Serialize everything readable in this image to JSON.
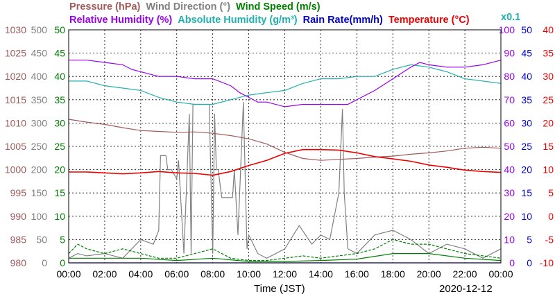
{
  "chart_data": {
    "type": "line",
    "date": "2020-12-12",
    "xlabel": "Time (JST)",
    "x_ticks": [
      "00:00",
      "02:00",
      "04:00",
      "06:00",
      "08:00",
      "10:00",
      "12:00",
      "14:00",
      "16:00",
      "18:00",
      "20:00",
      "22:00",
      "00:00"
    ],
    "x_range_hours": [
      0,
      24
    ],
    "grid": true,
    "legend_rows": [
      [
        {
          "key": "pressure",
          "text": "Pressure (hPa)"
        },
        {
          "key": "wind_dir",
          "text": "Wind Direction (°)"
        },
        {
          "key": "wind_speed",
          "text": "Wind Speed (m/s)"
        }
      ],
      [
        {
          "key": "rh",
          "text": "Relative Humidity (%)"
        },
        {
          "key": "ah",
          "text": "Absolute Humidity (g/m³)"
        },
        {
          "key": "rain",
          "text": "Rain Rate(mm/h)"
        },
        {
          "key": "temp",
          "text": "Temperature (°C)"
        }
      ]
    ],
    "scale_note": "x0.1",
    "axes": [
      {
        "key": "pressure",
        "side": "left",
        "range": [
          980,
          1030
        ],
        "ticks": [
          "1030",
          "1025",
          "1020",
          "1015",
          "1010",
          "1005",
          "1000",
          "995",
          "990",
          "985",
          "980"
        ]
      },
      {
        "key": "wind_dir",
        "side": "left",
        "range": [
          0,
          500
        ],
        "ticks": [
          "500",
          "450",
          "400",
          "350",
          "300",
          "250",
          "200",
          "150",
          "100",
          "50",
          "0"
        ]
      },
      {
        "key": "wind_speed",
        "side": "left",
        "range": [
          0,
          50
        ],
        "ticks": [
          "50",
          "45",
          "40",
          "35",
          "30",
          "25",
          "20",
          "15",
          "10",
          "5",
          "0"
        ]
      },
      {
        "key": "rh",
        "side": "right",
        "range": [
          0,
          100
        ],
        "ticks": [
          "100",
          "90",
          "80",
          "70",
          "60",
          "50",
          "40",
          "30",
          "20",
          "10",
          "0"
        ]
      },
      {
        "key": "rain",
        "side": "right",
        "range": [
          0,
          50
        ],
        "ticks": [
          "50",
          "45",
          "40",
          "35",
          "30",
          "25",
          "20",
          "15",
          "10",
          "5",
          "0"
        ]
      },
      {
        "key": "temp",
        "side": "right",
        "range": [
          -10,
          40
        ],
        "ticks": [
          "40",
          "35",
          "30",
          "25",
          "20",
          "15",
          "10",
          "5",
          "0",
          "-5",
          "-10"
        ]
      }
    ],
    "colors": {
      "pressure": "#a05a5a",
      "wind_dir": "#808080",
      "wind_speed": "#008000",
      "rh": "#9900ee",
      "ah": "#20b0b0",
      "rain": "#0000cc",
      "temp": "#ee0000",
      "grid": "#000000"
    },
    "series": [
      {
        "key": "pressure",
        "axis": "pressure",
        "x": [
          0,
          1,
          2,
          3,
          4,
          5,
          6,
          7,
          8,
          9,
          10,
          11,
          12,
          13,
          14,
          15,
          16,
          17,
          18,
          19,
          20,
          21,
          22,
          23,
          24
        ],
        "y": [
          1010.8,
          1010.2,
          1009.7,
          1009.0,
          1008.4,
          1008.2,
          1008.0,
          1008.1,
          1007.8,
          1007.3,
          1006.6,
          1005.5,
          1003.7,
          1002.4,
          1002.0,
          1002.2,
          1002.4,
          1002.7,
          1002.9,
          1003.3,
          1003.6,
          1004.0,
          1004.6,
          1004.8,
          1004.6
        ]
      },
      {
        "key": "rh",
        "axis": "rh",
        "x": [
          0,
          1,
          2,
          3,
          3.5,
          5,
          6,
          7,
          8,
          9,
          9.5,
          10,
          10.5,
          11,
          12,
          13,
          14,
          15,
          15.5,
          16,
          17,
          18,
          19,
          19.5,
          20,
          21,
          22,
          23,
          24
        ],
        "y": [
          87,
          87,
          86,
          85,
          83,
          80,
          80,
          79,
          79,
          76,
          73,
          71,
          69,
          69,
          67,
          68,
          68,
          68,
          68,
          70,
          74,
          79,
          84,
          86,
          85,
          84,
          84,
          85,
          87
        ]
      },
      {
        "key": "ah",
        "axis": "rh",
        "x": [
          0,
          1,
          2,
          3,
          4,
          5,
          6,
          7,
          8,
          9,
          10,
          11,
          12,
          13,
          14,
          15,
          16,
          17,
          18,
          19,
          20,
          21,
          22,
          23,
          24
        ],
        "y": [
          78,
          78,
          76,
          75,
          74,
          71,
          69,
          68,
          68,
          70,
          72,
          73,
          74,
          77,
          79,
          79,
          80,
          80,
          83,
          85,
          84,
          82,
          79,
          78,
          77
        ]
      },
      {
        "key": "temp",
        "axis": "temp",
        "x": [
          0,
          1,
          2,
          3,
          4,
          5,
          6,
          7,
          8,
          9,
          10,
          11,
          12,
          13,
          14,
          15,
          16,
          17,
          18,
          19,
          20,
          21,
          22,
          23,
          24
        ],
        "y": [
          9.5,
          9.5,
          9.3,
          9.1,
          9.3,
          9.6,
          9.3,
          9.2,
          8.8,
          9.6,
          10.9,
          12.0,
          13.5,
          14.3,
          14.3,
          14.2,
          13.6,
          12.8,
          12.3,
          11.8,
          11.0,
          10.5,
          9.9,
          9.6,
          9.4
        ]
      },
      {
        "key": "wind_dir",
        "axis": "wind_dir",
        "x": [
          0,
          0.5,
          1,
          2,
          3,
          4,
          4.7,
          5.0,
          5.1,
          5.4,
          5.5,
          5.7,
          6.0,
          6.1,
          6.4,
          6.7,
          6.8,
          6.9,
          7.1,
          7.2,
          7.4,
          7.8,
          8.0,
          8.1,
          8.2,
          8.3,
          8.5,
          9.1,
          9.2,
          9.4,
          9.7,
          9.9,
          10.0,
          10.5,
          11,
          12,
          12.8,
          13.5,
          14,
          14.5,
          15.0,
          15.2,
          15.3,
          15.5,
          16,
          17,
          18,
          19,
          20,
          21,
          22,
          23,
          24
        ],
        "y": [
          10,
          20,
          15,
          20,
          10,
          50,
          40,
          70,
          230,
          230,
          200,
          200,
          180,
          220,
          20,
          320,
          20,
          340,
          340,
          340,
          340,
          340,
          20,
          320,
          200,
          200,
          140,
          140,
          200,
          60,
          345,
          30,
          60,
          20,
          10,
          30,
          80,
          40,
          60,
          50,
          150,
          330,
          150,
          30,
          20,
          60,
          70,
          50,
          20,
          40,
          30,
          10,
          30
        ]
      },
      {
        "key": "wind_speed",
        "axis": "wind_speed",
        "style": "dashed",
        "x": [
          0,
          0.5,
          1,
          2,
          3,
          4,
          5,
          6,
          7,
          8,
          9,
          10,
          11,
          12,
          13,
          14,
          15,
          16,
          17,
          18,
          19,
          20,
          21,
          22,
          23,
          24
        ],
        "y": [
          2,
          4,
          3,
          2,
          3,
          2,
          1,
          1,
          2,
          3,
          1,
          0.5,
          0.5,
          1,
          1.5,
          1,
          1.5,
          2,
          3,
          5,
          4,
          4,
          3,
          2,
          1.5,
          1
        ]
      },
      {
        "key": "wind_speed_avg",
        "axis": "wind_speed",
        "x": [
          0,
          2,
          4,
          6,
          8,
          10,
          12,
          14,
          16,
          18,
          20,
          22,
          24
        ],
        "y": [
          1,
          1,
          1,
          0.5,
          1,
          0.3,
          0.3,
          0.5,
          0.8,
          2,
          2,
          1,
          0.5
        ]
      },
      {
        "key": "rain",
        "axis": "rain",
        "x": [
          0,
          24
        ],
        "y": [
          0,
          0
        ]
      }
    ]
  }
}
